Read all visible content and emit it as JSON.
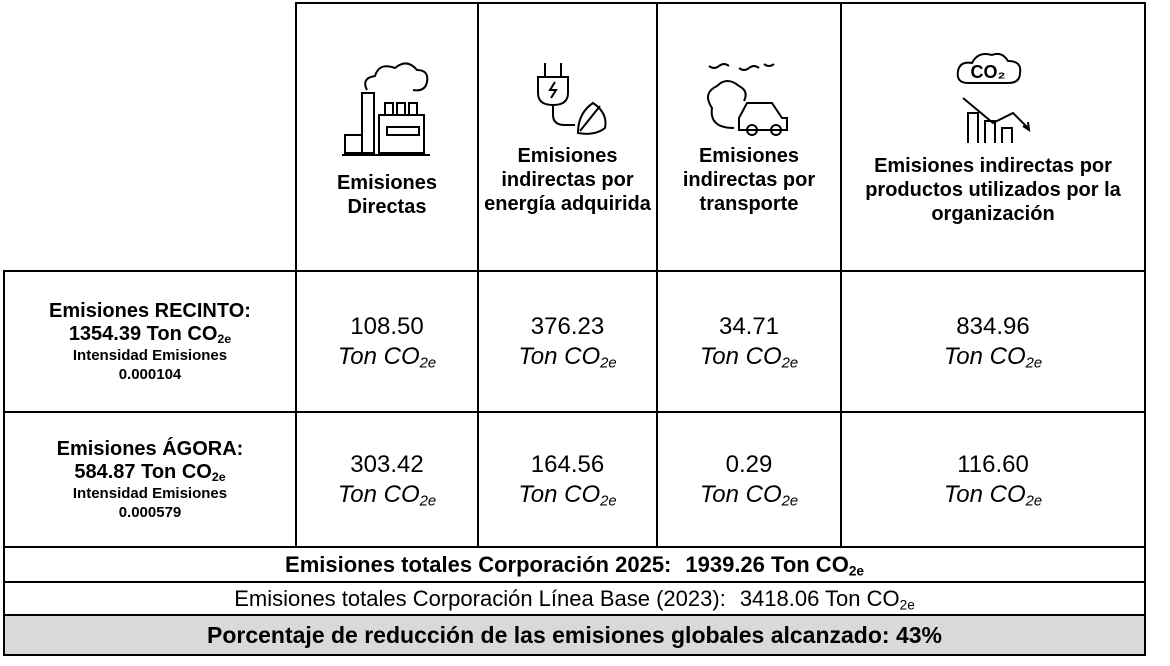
{
  "table": {
    "header": [
      "Emisiones Directas",
      "Emisiones indirectas por energía adquirida",
      "Emisiones indirectas por transporte",
      "Emisiones indirectas por productos utilizados por la organización"
    ],
    "rows": [
      {
        "name": "Emisiones RECINTO:",
        "total": "1354.39 Ton CO",
        "total_sub": "2e",
        "intensity_label": "Intensidad Emisiones",
        "intensity": "0.000104",
        "cells": [
          {
            "value": "108.50",
            "unit": "Ton CO",
            "sub": "2e"
          },
          {
            "value": "376.23",
            "unit": "Ton CO",
            "sub": "2e"
          },
          {
            "value": "34.71",
            "unit": "Ton CO",
            "sub": "2e"
          },
          {
            "value": "834.96",
            "unit": "Ton CO",
            "sub": "2e"
          }
        ]
      },
      {
        "name": "Emisiones ÁGORA:",
        "total": "584.87 Ton CO",
        "total_sub": "2e",
        "intensity_label": "Intensidad Emisiones",
        "intensity": "0.000579",
        "cells": [
          {
            "value": "303.42",
            "unit": "Ton CO",
            "sub": "2e"
          },
          {
            "value": "164.56",
            "unit": "Ton CO",
            "sub": "2e"
          },
          {
            "value": "0.29",
            "unit": "Ton CO",
            "sub": "2e"
          },
          {
            "value": "116.60",
            "unit": "Ton CO",
            "sub": "2e"
          }
        ]
      }
    ],
    "total": {
      "label": "Emisiones totales Corporación 2025:",
      "value": "1939.26 Ton CO",
      "sub": "2e"
    },
    "baseline": {
      "label": "Emisiones totales Corporación Línea Base (2023):",
      "value": "3418.06 Ton CO",
      "sub": "2e"
    },
    "reduction": "Porcentaje de reducción de las emisiones globales alcanzado: 43%"
  }
}
